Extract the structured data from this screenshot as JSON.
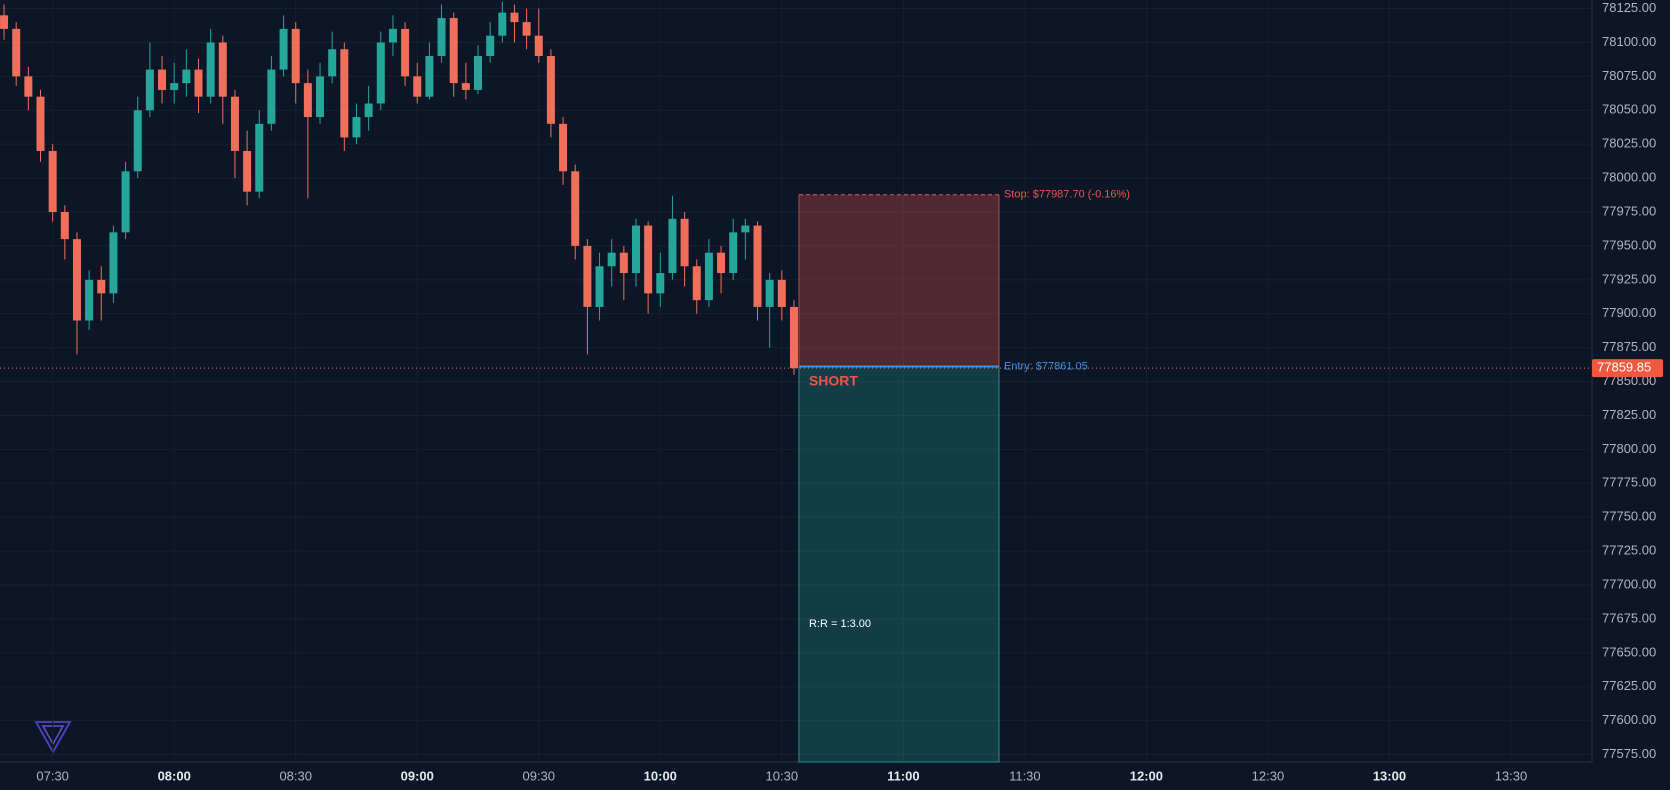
{
  "chart_data": {
    "type": "candlestick",
    "x": [
      "07:18",
      "07:21",
      "07:24",
      "07:27",
      "07:30",
      "07:33",
      "07:36",
      "07:39",
      "07:42",
      "07:45",
      "07:48",
      "07:51",
      "07:54",
      "07:57",
      "08:00",
      "08:03",
      "08:06",
      "08:09",
      "08:12",
      "08:15",
      "08:18",
      "08:21",
      "08:24",
      "08:27",
      "08:30",
      "08:33",
      "08:36",
      "08:39",
      "08:42",
      "08:45",
      "08:48",
      "08:51",
      "08:54",
      "08:57",
      "09:00",
      "09:03",
      "09:06",
      "09:09",
      "09:12",
      "09:15",
      "09:18",
      "09:21",
      "09:24",
      "09:27",
      "09:30",
      "09:33",
      "09:36",
      "09:39",
      "09:42",
      "09:45",
      "09:48",
      "09:51",
      "09:54",
      "09:57",
      "10:00",
      "10:03",
      "10:06",
      "10:09",
      "10:12",
      "10:15",
      "10:18",
      "10:21",
      "10:24",
      "10:27",
      "10:30",
      "10:33"
    ],
    "open": [
      78120,
      78110,
      78075,
      78060,
      78020,
      77975,
      77955,
      77895,
      77925,
      77915,
      77960,
      78005,
      78050,
      78080,
      78065,
      78070,
      78080,
      78060,
      78100,
      78060,
      78020,
      77990,
      78040,
      78080,
      78110,
      78070,
      78045,
      78075,
      78095,
      78030,
      78045,
      78055,
      78100,
      78110,
      78075,
      78060,
      78090,
      78118,
      78070,
      78065,
      78090,
      78105,
      78122,
      78115,
      78105,
      78090,
      78040,
      78005,
      77950,
      77905,
      77935,
      77945,
      77930,
      77965,
      77915,
      77930,
      77970,
      77935,
      77910,
      77945,
      77930,
      77960,
      77965,
      77905,
      77925,
      77905
    ],
    "high": [
      78128,
      78115,
      78082,
      78065,
      78025,
      77980,
      77960,
      77932,
      77935,
      77965,
      78012,
      78060,
      78100,
      78090,
      78085,
      78095,
      78088,
      78110,
      78105,
      78065,
      78035,
      78050,
      78090,
      78120,
      78115,
      78080,
      78085,
      78108,
      78100,
      78055,
      78068,
      78108,
      78120,
      78115,
      78085,
      78100,
      78128,
      78122,
      78085,
      78098,
      78115,
      78130,
      78128,
      78125,
      78125,
      78095,
      78045,
      78010,
      77955,
      77945,
      77955,
      77950,
      77970,
      77968,
      77945,
      77987,
      77975,
      77940,
      77955,
      77950,
      77970,
      77970,
      77968,
      77930,
      77932,
      77910
    ],
    "low": [
      78102,
      78068,
      78050,
      78012,
      77968,
      77940,
      77870,
      77888,
      77895,
      77908,
      77955,
      78000,
      78045,
      78055,
      78055,
      78060,
      78048,
      78055,
      78040,
      78000,
      77980,
      77985,
      78035,
      78075,
      78055,
      77985,
      78040,
      78070,
      78020,
      78025,
      78035,
      78050,
      78090,
      78068,
      78055,
      78058,
      78085,
      78060,
      78058,
      78062,
      78085,
      78100,
      78100,
      78095,
      78085,
      78030,
      77995,
      77940,
      77870,
      77895,
      77920,
      77910,
      77920,
      77900,
      77905,
      77925,
      77920,
      77900,
      77905,
      77915,
      77925,
      77940,
      77895,
      77875,
      77895,
      77855
    ],
    "close": [
      78110,
      78075,
      78060,
      78020,
      77975,
      77955,
      77895,
      77925,
      77915,
      77960,
      78005,
      78050,
      78080,
      78065,
      78070,
      78080,
      78060,
      78100,
      78060,
      78020,
      77990,
      78040,
      78080,
      78110,
      78070,
      78045,
      78075,
      78095,
      78030,
      78045,
      78055,
      78100,
      78110,
      78075,
      78060,
      78090,
      78118,
      78070,
      78065,
      78090,
      78105,
      78122,
      78115,
      78105,
      78090,
      78040,
      78005,
      77950,
      77905,
      77935,
      77945,
      77930,
      77965,
      77915,
      77930,
      77970,
      77935,
      77910,
      77945,
      77930,
      77960,
      77965,
      77905,
      77925,
      77905,
      77859.85
    ],
    "up_color": "#26a69a",
    "down_color": "#ef6f5a",
    "xlim": [
      "07:17",
      "13:50"
    ],
    "xticks": [
      "07:30",
      "08:00",
      "08:30",
      "09:00",
      "09:30",
      "10:00",
      "10:30",
      "11:00",
      "11:30",
      "12:00",
      "12:30",
      "13:00",
      "13:30"
    ],
    "ylim": [
      77569.5,
      78131.3
    ],
    "yticks": [
      {
        "value": 77575,
        "label": "77575.00"
      },
      {
        "value": 77600,
        "label": "77600.00"
      },
      {
        "value": 77625,
        "label": "77625.00"
      },
      {
        "value": 77650,
        "label": "77650.00"
      },
      {
        "value": 77675,
        "label": "77675.00"
      },
      {
        "value": 77700,
        "label": "77700.00"
      },
      {
        "value": 77725,
        "label": "77725.00"
      },
      {
        "value": 77750,
        "label": "77750.00"
      },
      {
        "value": 77775,
        "label": "77775.00"
      },
      {
        "value": 77800,
        "label": "77800.00"
      },
      {
        "value": 77825,
        "label": "77825.00"
      },
      {
        "value": 77850,
        "label": "77850.00"
      },
      {
        "value": 77875,
        "label": "77875.00"
      },
      {
        "value": 77900,
        "label": "77900.00"
      },
      {
        "value": 77925,
        "label": "77925.00"
      },
      {
        "value": 77950,
        "label": "77950.00"
      },
      {
        "value": 77975,
        "label": "77975.00"
      },
      {
        "value": 78000,
        "label": "78000.00"
      },
      {
        "value": 78025,
        "label": "78025.00"
      },
      {
        "value": 78050,
        "label": "78050.00"
      },
      {
        "value": 78075,
        "label": "78075.00"
      },
      {
        "value": 78100,
        "label": "78100.00"
      },
      {
        "value": 78125,
        "label": "78125.00"
      }
    ],
    "grid": true,
    "last_price": 77859.85,
    "position": {
      "side": "SHORT",
      "stop": 77987.7,
      "entry": 77861.05,
      "stop_label": "Stop: $77987.70 (-0.16%)",
      "entry_label": "Entry: $77861.05",
      "ratio_label": "R:R = 1:3.00"
    }
  }
}
